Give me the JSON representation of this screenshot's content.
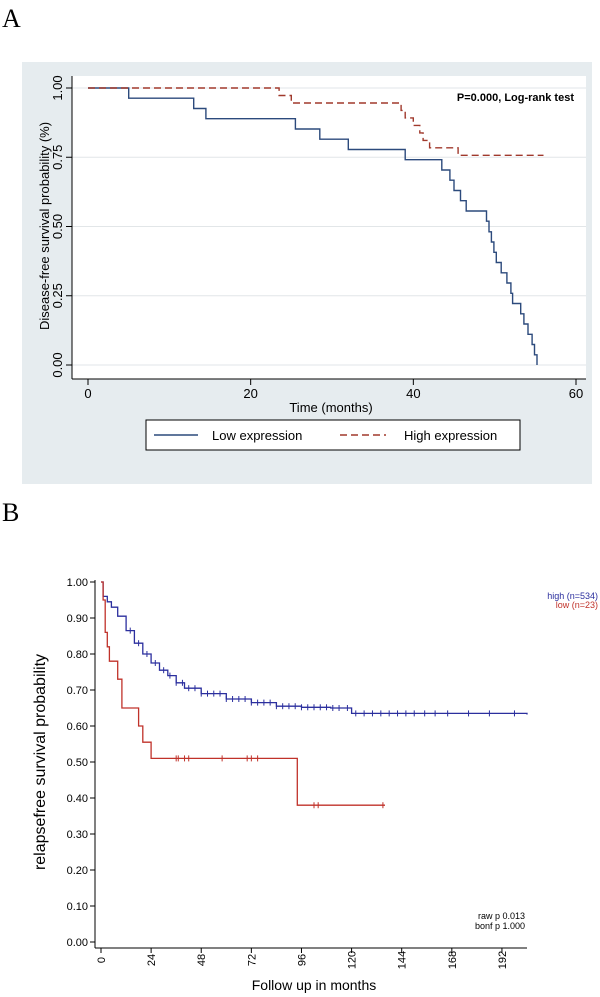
{
  "panels": {
    "a_label": "A",
    "b_label": "B"
  },
  "chart_data": [
    {
      "type": "line",
      "step": true,
      "xlabel": "Time (months)",
      "ylabel": "Disease-free survival probability (%)",
      "annotation": "P=0.000, Log-rank test",
      "xlim": [
        0,
        60
      ],
      "ylim": [
        0,
        1
      ],
      "x_ticks": [
        0,
        20,
        40,
        60
      ],
      "x_tick_labels": [
        "0",
        "20",
        "40",
        "60"
      ],
      "y_ticks": [
        0,
        0.25,
        0.5,
        0.75,
        1
      ],
      "y_tick_labels": [
        "0.00",
        "0.25",
        "0.50",
        "0.75",
        "1.00"
      ],
      "grid": true,
      "legend_position": "bottom",
      "series": [
        {
          "name": "Low expression",
          "color": "#2c4a7c",
          "dash": "solid",
          "points": [
            [
              0,
              1.0
            ],
            [
              5,
              0.963
            ],
            [
              13,
              0.926
            ],
            [
              14.5,
              0.889
            ],
            [
              25.5,
              0.852
            ],
            [
              28.5,
              0.815
            ],
            [
              32,
              0.778
            ],
            [
              39,
              0.741
            ],
            [
              43.5,
              0.704
            ],
            [
              44.5,
              0.667
            ],
            [
              45,
              0.63
            ],
            [
              45.8,
              0.593
            ],
            [
              46.5,
              0.556
            ],
            [
              49,
              0.519
            ],
            [
              49.3,
              0.481
            ],
            [
              49.6,
              0.444
            ],
            [
              49.9,
              0.407
            ],
            [
              50.2,
              0.37
            ],
            [
              50.8,
              0.333
            ],
            [
              51.5,
              0.296
            ],
            [
              52,
              0.259
            ],
            [
              52.2,
              0.222
            ],
            [
              53.2,
              0.185
            ],
            [
              53.6,
              0.148
            ],
            [
              54.1,
              0.111
            ],
            [
              54.6,
              0.074
            ],
            [
              54.9,
              0.037
            ],
            [
              55.2,
              0.0
            ]
          ]
        },
        {
          "name": "High expression",
          "color": "#a0392c",
          "dash": "dashed",
          "points": [
            [
              0,
              1.0
            ],
            [
              23.5,
              0.973
            ],
            [
              25,
              0.946
            ],
            [
              38.5,
              0.919
            ],
            [
              39,
              0.892
            ],
            [
              40,
              0.865
            ],
            [
              40.8,
              0.838
            ],
            [
              41.2,
              0.811
            ],
            [
              42,
              0.784
            ],
            [
              45.5,
              0.757
            ],
            [
              56,
              0.757
            ]
          ]
        }
      ]
    },
    {
      "type": "line",
      "step": true,
      "xlabel": "Follow up in months",
      "ylabel": "relapsefree survival probability",
      "xlim": [
        0,
        204
      ],
      "ylim": [
        0,
        1
      ],
      "x_ticks": [
        0,
        24,
        48,
        72,
        96,
        120,
        144,
        168,
        192
      ],
      "x_tick_labels": [
        "0",
        "24",
        "48",
        "72",
        "96",
        "120",
        "144",
        "168",
        "192"
      ],
      "y_ticks": [
        0,
        0.1,
        0.2,
        0.3,
        0.4,
        0.5,
        0.6,
        0.7,
        0.8,
        0.9,
        1
      ],
      "y_tick_labels": [
        "0.00",
        "0.10",
        "0.20",
        "0.30",
        "0.40",
        "0.50",
        "0.60",
        "0.70",
        "0.80",
        "0.90",
        "1.00"
      ],
      "grid": false,
      "legend_position": "top-right",
      "footnotes": [
        "raw p 0.013",
        "bonf p 1.000"
      ],
      "series": [
        {
          "name": "high (n=534)",
          "color": "#2b2f9e",
          "points": [
            [
              0,
              1.0
            ],
            [
              1,
              0.96
            ],
            [
              3,
              0.945
            ],
            [
              5,
              0.93
            ],
            [
              8,
              0.905
            ],
            [
              12,
              0.865
            ],
            [
              16,
              0.83
            ],
            [
              20,
              0.8
            ],
            [
              24,
              0.775
            ],
            [
              28,
              0.755
            ],
            [
              32,
              0.74
            ],
            [
              36,
              0.72
            ],
            [
              40,
              0.705
            ],
            [
              48,
              0.69
            ],
            [
              60,
              0.675
            ],
            [
              72,
              0.665
            ],
            [
              84,
              0.655
            ],
            [
              96,
              0.652
            ],
            [
              110,
              0.65
            ],
            [
              120,
              0.635
            ],
            [
              204,
              0.632
            ]
          ],
          "censor_x": [
            14,
            18,
            22,
            26,
            30,
            33,
            36,
            39,
            42,
            45,
            48,
            51,
            54,
            57,
            60,
            63,
            66,
            69,
            72,
            75,
            78,
            81,
            84,
            87,
            90,
            93,
            96,
            99,
            102,
            105,
            108,
            111,
            114,
            118,
            122,
            126,
            130,
            134,
            138,
            142,
            146,
            150,
            155,
            160,
            166,
            176,
            186,
            198
          ]
        },
        {
          "name": "low (n=23)",
          "color": "#c0322a",
          "points": [
            [
              0,
              1.0
            ],
            [
              1,
              0.95
            ],
            [
              2,
              0.86
            ],
            [
              3,
              0.82
            ],
            [
              4,
              0.78
            ],
            [
              8,
              0.73
            ],
            [
              10,
              0.65
            ],
            [
              18,
              0.6
            ],
            [
              20,
              0.555
            ],
            [
              24,
              0.51
            ],
            [
              94,
              0.38
            ],
            [
              136,
              0.38
            ]
          ],
          "censor_x": [
            36,
            37,
            40,
            42,
            58,
            70,
            72,
            75,
            102,
            104,
            135
          ]
        }
      ]
    }
  ]
}
